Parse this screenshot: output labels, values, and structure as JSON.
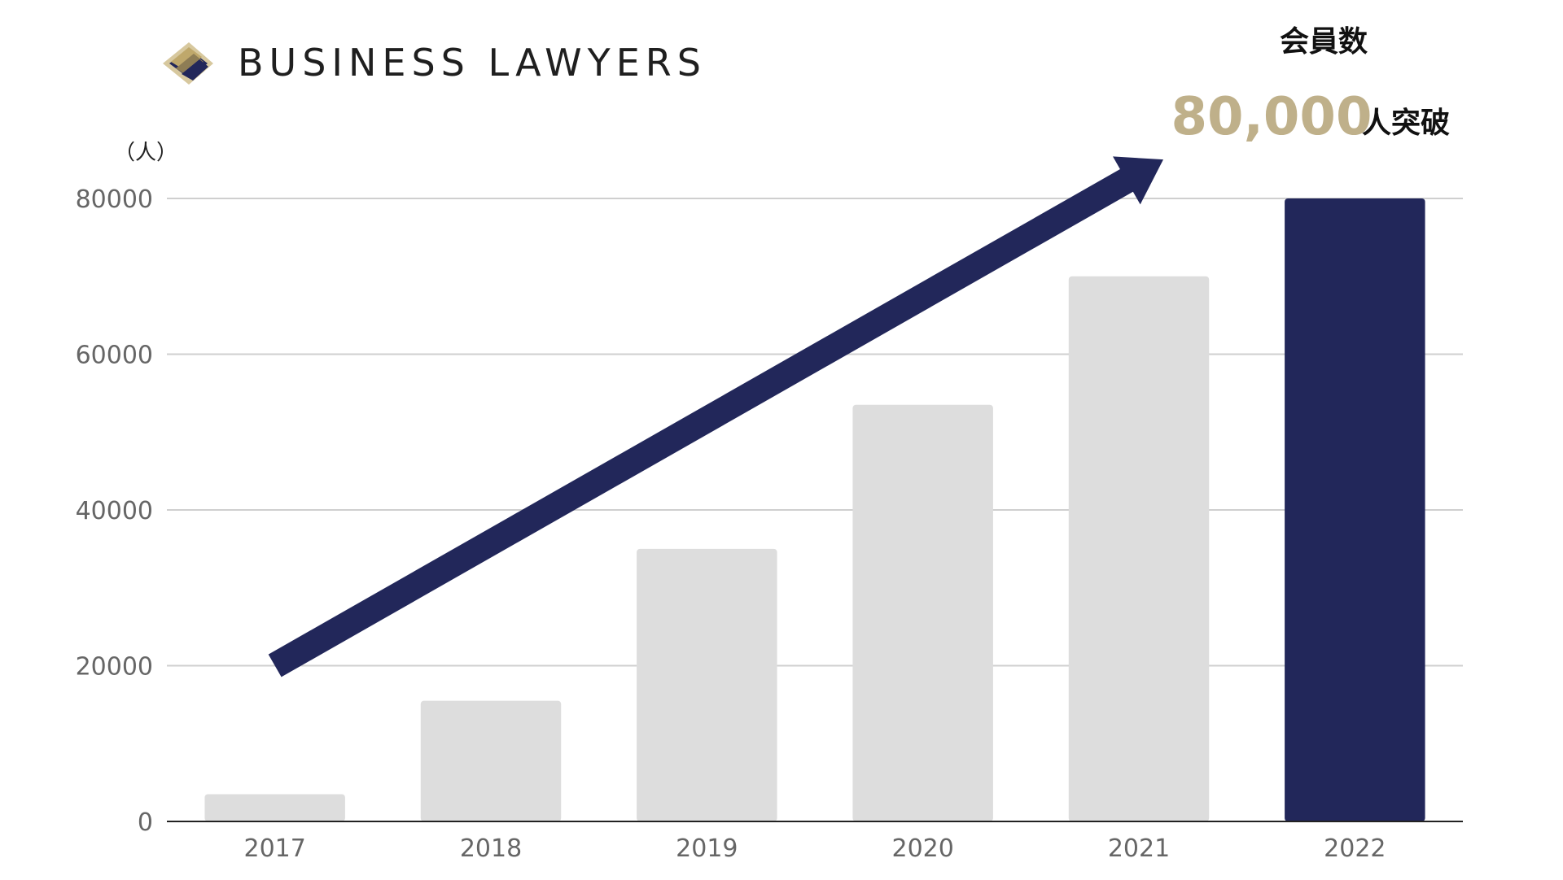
{
  "brand": {
    "name": "BUSINESS LAWYERS",
    "logo_icon": "layered-diamond-icon",
    "colors": {
      "gold": "#c9b277",
      "navy": "#22275a"
    }
  },
  "headline": {
    "label": "会員数",
    "value": "80,000",
    "suffix": "人突破"
  },
  "chart_data": {
    "type": "bar",
    "title": "",
    "ylabel": "（人）",
    "xlabel": "",
    "categories": [
      "2017",
      "2018",
      "2019",
      "2020",
      "2021",
      "2022"
    ],
    "values": [
      3500,
      15500,
      35000,
      53500,
      70000,
      80000
    ],
    "ylim": [
      0,
      80000
    ],
    "yticks": [
      0,
      20000,
      40000,
      60000,
      80000
    ],
    "ytick_labels": [
      "0",
      "20000",
      "40000",
      "60000",
      "80000"
    ],
    "grid": true,
    "legend": "none",
    "colors": {
      "default_bar": "#dddddd",
      "highlight_bar": "#22275a",
      "arrow": "#22275a",
      "grid": "#cfcfcf",
      "axis": "#222222"
    },
    "highlight_category": "2022",
    "annotations": [
      {
        "type": "arrow",
        "from": {
          "x": "2017",
          "y": 20000
        },
        "to": {
          "x": "2021",
          "y": 85000
        },
        "color": "#22275a"
      }
    ]
  }
}
